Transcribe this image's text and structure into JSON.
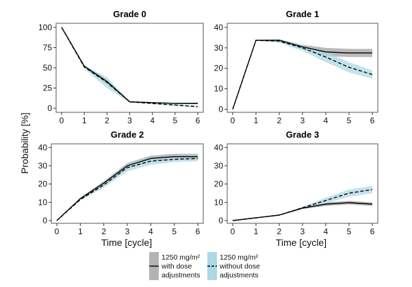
{
  "colors": {
    "with_dose_adjustments_band": "#b3b3b3",
    "without_dose_adjustments_band": "#add8e6",
    "line": "#000000",
    "panel_border": "#555555"
  },
  "labels": {
    "ylabel": "Probability [%]",
    "xlabel": "Time [cycle]"
  },
  "legend": {
    "items": [
      {
        "lines": [
          "1250 mg/m²",
          "with dose",
          "adjustments"
        ],
        "style": "solid",
        "band": "gray"
      },
      {
        "lines": [
          "1250 mg/m²",
          "without dose",
          "adjustments"
        ],
        "style": "dashed",
        "band": "blue"
      }
    ]
  },
  "chart_data": [
    {
      "type": "line",
      "title": "Grade 0",
      "x": [
        0,
        1,
        2,
        3,
        4,
        5,
        6
      ],
      "ylim": [
        -5,
        105
      ],
      "yticks": [
        0,
        25,
        50,
        75,
        100
      ],
      "xticks": [
        0,
        1,
        2,
        3,
        4,
        5,
        6
      ],
      "grid": false,
      "series": [
        {
          "name": "1250 mg/m² with dose adjustments",
          "style": "solid",
          "values": [
            100,
            52,
            33,
            8,
            7,
            6,
            6
          ],
          "lower": [
            100,
            51,
            30,
            7.5,
            6.5,
            5.5,
            5
          ],
          "upper": [
            100,
            53,
            36,
            8.5,
            7.5,
            6.5,
            7
          ]
        },
        {
          "name": "1250 mg/m² without dose adjustments",
          "style": "dashed",
          "values": [
            100,
            51,
            32,
            8,
            6,
            4,
            2
          ],
          "lower": [
            100,
            49,
            25,
            7,
            5,
            3,
            1
          ],
          "upper": [
            100,
            53,
            38,
            9,
            7,
            5,
            3
          ]
        }
      ]
    },
    {
      "type": "line",
      "title": "Grade 1",
      "x": [
        0,
        1,
        2,
        3,
        4,
        5,
        6
      ],
      "ylim": [
        -1.5,
        42
      ],
      "yticks": [
        0,
        10,
        20,
        30,
        40
      ],
      "xticks": [
        0,
        1,
        2,
        3,
        4,
        5,
        6
      ],
      "grid": false,
      "series": [
        {
          "name": "1250 mg/m² with dose adjustments",
          "style": "solid",
          "values": [
            0,
            33.7,
            33.7,
            30.5,
            28,
            27.5,
            27.5
          ],
          "lower": [
            0,
            33.5,
            33.2,
            29.5,
            26,
            25.5,
            25.5
          ],
          "upper": [
            0,
            34,
            34.2,
            31.5,
            30,
            29.5,
            29.5
          ]
        },
        {
          "name": "1250 mg/m² without dose adjustments",
          "style": "dashed",
          "values": [
            0,
            33.7,
            33.3,
            30,
            25.5,
            20.5,
            17
          ],
          "lower": [
            0,
            33.5,
            32.5,
            28.5,
            23,
            18,
            15
          ],
          "upper": [
            0,
            34,
            34,
            31.5,
            28,
            23,
            19
          ]
        }
      ]
    },
    {
      "type": "line",
      "title": "Grade 2",
      "x": [
        0,
        1,
        2,
        3,
        4,
        5,
        6
      ],
      "ylim": [
        -1.5,
        42
      ],
      "yticks": [
        0,
        10,
        20,
        30,
        40
      ],
      "xticks": [
        0,
        1,
        2,
        3,
        4,
        5,
        6
      ],
      "grid": false,
      "series": [
        {
          "name": "1250 mg/m² with dose adjustments",
          "style": "solid",
          "values": [
            0,
            12,
            20.5,
            30,
            34,
            35,
            35
          ],
          "lower": [
            0,
            11.5,
            19.5,
            28.5,
            32.5,
            33.5,
            33.5
          ],
          "upper": [
            0,
            12.5,
            21.5,
            31.5,
            35.5,
            36.5,
            36.5
          ]
        },
        {
          "name": "1250 mg/m² without dose adjustments",
          "style": "dashed",
          "values": [
            0,
            11.5,
            19.5,
            29,
            32.5,
            33.5,
            34
          ],
          "lower": [
            0,
            11,
            18,
            27,
            30.5,
            32,
            32.5
          ],
          "upper": [
            0,
            12,
            21,
            31,
            34.5,
            35,
            35.5
          ]
        }
      ]
    },
    {
      "type": "line",
      "title": "Grade 3",
      "x": [
        0,
        1,
        2,
        3,
        4,
        5,
        6
      ],
      "ylim": [
        -1.5,
        42
      ],
      "yticks": [
        0,
        10,
        20,
        30,
        40
      ],
      "xticks": [
        0,
        1,
        2,
        3,
        4,
        5,
        6
      ],
      "grid": false,
      "series": [
        {
          "name": "1250 mg/m² with dose adjustments",
          "style": "solid",
          "values": [
            0,
            1.5,
            3,
            6.8,
            9,
            9.8,
            9
          ],
          "lower": [
            0,
            1.4,
            2.8,
            6.3,
            8,
            8.8,
            8
          ],
          "upper": [
            0,
            1.6,
            3.2,
            7.3,
            10,
            10.8,
            10
          ]
        },
        {
          "name": "1250 mg/m² without dose adjustments",
          "style": "dashed",
          "values": [
            0,
            1.5,
            3,
            7,
            11,
            15,
            17
          ],
          "lower": [
            0,
            1.4,
            2.8,
            6.5,
            9.5,
            13,
            15
          ],
          "upper": [
            0,
            1.6,
            3.2,
            7.5,
            12.5,
            17,
            19
          ]
        }
      ]
    }
  ]
}
